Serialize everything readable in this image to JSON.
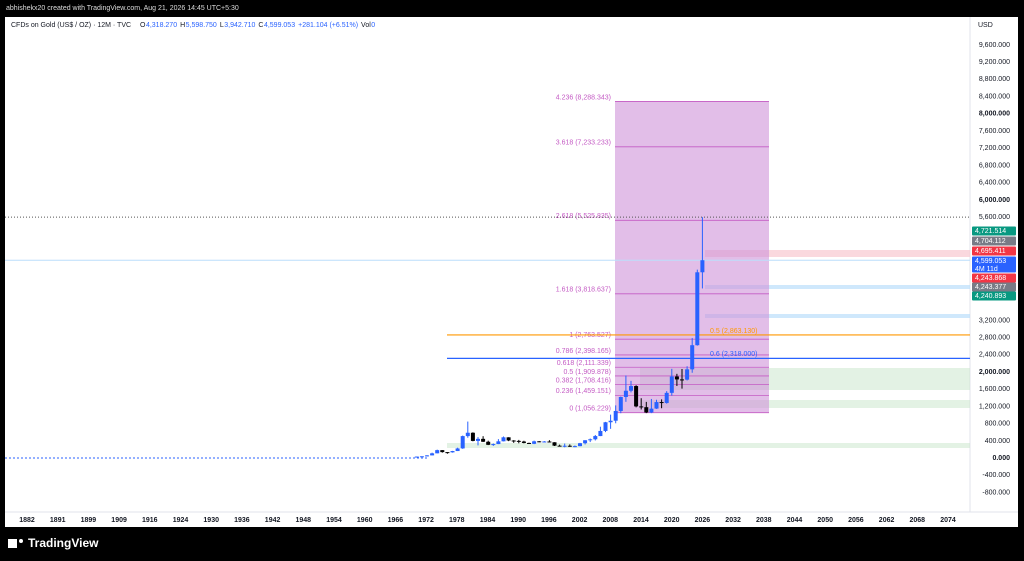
{
  "header": {
    "credit": "abhishekx20 created with TradingView.com, Aug 21, 2026 14:45 UTC+5:30",
    "symbol": "CFDs on Gold (US$ / OZ) · 12M · TVC",
    "ohlc": [
      {
        "key": "O",
        "value": "4,318.270"
      },
      {
        "key": "H",
        "value": "5,598.750"
      },
      {
        "key": "L",
        "value": "3,942.710"
      },
      {
        "key": "C",
        "value": "4,599.053"
      }
    ],
    "change": "+281.104 (+6.51%)",
    "volume_key": "Vol",
    "volume": "0"
  },
  "currency": "USD",
  "footer": {
    "brand": "TradingView"
  },
  "chart_data": {
    "type": "candlestick",
    "x": [
      1970,
      1971,
      1972,
      1973,
      1974,
      1975,
      1976,
      1977,
      1978,
      1979,
      1980,
      1981,
      1982,
      1983,
      1984,
      1985,
      1986,
      1987,
      1988,
      1989,
      1990,
      1991,
      1992,
      1993,
      1994,
      1995,
      1996,
      1997,
      1998,
      1999,
      2000,
      2001,
      2002,
      2003,
      2004,
      2005,
      2006,
      2007,
      2008,
      2009,
      2010,
      2011,
      2012,
      2013,
      2014,
      2015,
      2016,
      2017,
      2018,
      2019,
      2020,
      2021,
      2022,
      2023,
      2024,
      2025,
      2026
    ],
    "open": [
      35,
      37,
      43,
      64,
      112,
      186,
      140,
      134,
      165,
      226,
      512,
      590,
      400,
      448,
      381,
      309,
      327,
      391,
      484,
      410,
      401,
      386,
      353,
      333,
      391,
      383,
      387,
      369,
      290,
      288,
      288,
      272,
      279,
      347,
      416,
      438,
      513,
      632,
      834,
      869,
      1096,
      1421,
      1566,
      1675,
      1202,
      1184,
      1061,
      1151,
      1303,
      1282,
      1517,
      1898,
      1829,
      1824,
      2063,
      2624,
      4318.27
    ],
    "high": [
      39,
      44,
      70,
      127,
      197,
      186,
      140,
      168,
      243,
      524,
      850,
      600,
      488,
      510,
      406,
      340,
      442,
      502,
      485,
      418,
      424,
      404,
      360,
      407,
      397,
      397,
      418,
      369,
      314,
      339,
      320,
      294,
      354,
      417,
      456,
      538,
      730,
      842,
      1011,
      1226,
      1431,
      1921,
      1796,
      1694,
      1392,
      1307,
      1375,
      1358,
      1366,
      1557,
      2075,
      1959,
      2070,
      2135,
      2790,
      4380,
      5598.75
    ],
    "low": [
      35,
      37,
      43,
      64,
      112,
      128,
      103,
      129,
      165,
      216,
      474,
      391,
      297,
      374,
      303,
      284,
      326,
      390,
      395,
      356,
      345,
      344,
      330,
      326,
      370,
      372,
      367,
      283,
      273,
      252,
      263,
      255,
      277,
      319,
      373,
      411,
      512,
      603,
      681,
      810,
      1044,
      1308,
      1527,
      1180,
      1131,
      1046,
      1046,
      1146,
      1160,
      1266,
      1451,
      1677,
      1615,
      1805,
      1984,
      2614,
      3942.71
    ],
    "close": [
      37,
      43,
      64,
      112,
      186,
      140,
      134,
      165,
      226,
      512,
      590,
      400,
      448,
      381,
      309,
      327,
      391,
      484,
      410,
      401,
      386,
      353,
      333,
      391,
      383,
      387,
      369,
      290,
      288,
      288,
      272,
      279,
      347,
      416,
      438,
      513,
      632,
      834,
      869,
      1096,
      1421,
      1566,
      1675,
      1202,
      1184,
      1061,
      1151,
      1303,
      1282,
      1517,
      1898,
      1829,
      1824,
      2063,
      2624,
      4318.27,
      4599.053
    ],
    "up_color": "#2962ff",
    "down_color": "#000000",
    "ylim": [
      -1600,
      10250
    ],
    "yticks": [
      {
        "value": 9600,
        "label": "9,600.000"
      },
      {
        "value": 9200,
        "label": "9,200.000"
      },
      {
        "value": 8800,
        "label": "8,800.000"
      },
      {
        "value": 8400,
        "label": "8,400.000"
      },
      {
        "value": 8000,
        "label": "8,000.000"
      },
      {
        "value": 7600,
        "label": "7,600.000"
      },
      {
        "value": 7200,
        "label": "7,200.000"
      },
      {
        "value": 6800,
        "label": "6,800.000"
      },
      {
        "value": 6400,
        "label": "6,400.000"
      },
      {
        "value": 6000,
        "label": "6,000.000"
      },
      {
        "value": 5600,
        "label": "5,600.000"
      },
      {
        "value": 3200,
        "label": "3,200.000"
      },
      {
        "value": 2800,
        "label": "2,800.000"
      },
      {
        "value": 2400,
        "label": "2,400.000"
      },
      {
        "value": 2000,
        "label": "2,000.000"
      },
      {
        "value": 1600,
        "label": "1,600.000"
      },
      {
        "value": 1200,
        "label": "1,200.000"
      },
      {
        "value": 800,
        "label": "800.000"
      },
      {
        "value": 400,
        "label": "400.000"
      },
      {
        "value": 0,
        "label": "0.000"
      },
      {
        "value": -400,
        "label": "-400.000"
      },
      {
        "value": -800,
        "label": "-800.000"
      }
    ],
    "time_labels": [
      "1882",
      "1891",
      "1899",
      "1909",
      "1916",
      "1924",
      "1930",
      "1936",
      "1942",
      "1948",
      "1954",
      "1960",
      "1966",
      "1972",
      "1978",
      "1984",
      "1990",
      "1996",
      "2002",
      "2008",
      "2014",
      "2020",
      "2026",
      "2032",
      "2038",
      "2044",
      "2050",
      "2056",
      "2062",
      "2068",
      "2074"
    ],
    "fib_levels": [
      {
        "value": 8288.343,
        "label": "4.236 (8,288.343)"
      },
      {
        "value": 7233.233,
        "label": "3.618 (7,233.233)"
      },
      {
        "value": 5525.835,
        "label": "2.618 (5,525.835)"
      },
      {
        "value": 3818.637,
        "label": "1.618 (3,818.637)"
      },
      {
        "value": 2763.527,
        "label": "1 (2,763.527)"
      },
      {
        "value": 2398.165,
        "label": "0.786 (2,398.165)"
      },
      {
        "value": 2111.339,
        "label": "0.618 (2,111.339)"
      },
      {
        "value": 1909.878,
        "label": "0.5 (1,909.878)"
      },
      {
        "value": 1708.416,
        "label": "0.382 (1,708.416)"
      },
      {
        "value": 1459.151,
        "label": "0.236 (1,459.151)"
      },
      {
        "value": 1056.229,
        "label": "0 (1,056.229)"
      }
    ],
    "fib_color": "#c45bc4",
    "hlines": [
      {
        "value": 2863.13,
        "label": "0.5 (2,863.130)",
        "color": "#ff9800"
      },
      {
        "value": 2318,
        "label": "0.6 (2,318.000)",
        "color": "#2962ff"
      }
    ],
    "price_tags": [
      {
        "label": "4,721.514",
        "color": "#089981"
      },
      {
        "label": "4,704.112",
        "color": "#787b86"
      },
      {
        "label": "4,695.411",
        "color": "#f23645"
      },
      {
        "label": "4,599.053",
        "color": "#2962ff",
        "note": "4M 11d"
      },
      {
        "label": "4,243.868",
        "color": "#f23645"
      },
      {
        "label": "4,243.377",
        "color": "#787b86"
      },
      {
        "label": "4,240.893",
        "color": "#089981"
      }
    ]
  }
}
